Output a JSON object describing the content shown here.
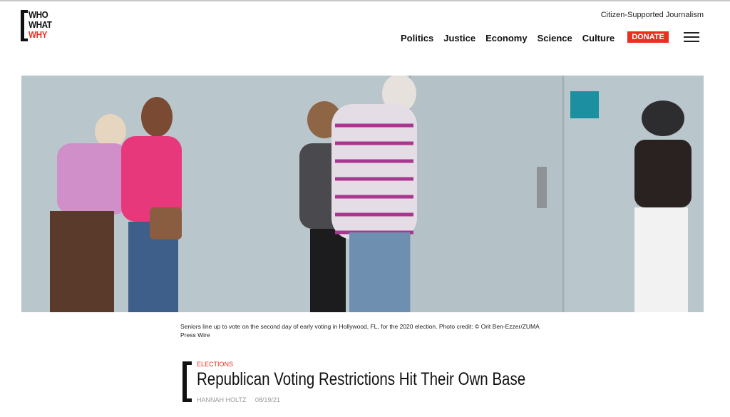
{
  "header": {
    "logo": [
      "WHO",
      "WHAT",
      "WHY"
    ],
    "tagline": "Citizen-Supported Journalism",
    "nav": [
      "Politics",
      "Justice",
      "Economy",
      "Science",
      "Culture"
    ],
    "donate": "DONATE",
    "menu_icon": "hamburger-icon"
  },
  "colors": {
    "accent": "#e8301f"
  },
  "hero": {
    "caption": "Seniors line up to vote on the second day of early voting in Hollywood, FL, for the 2020 election. Photo credit: © Orit Ben-Ezzer/ZUMA Press Wire"
  },
  "article": {
    "category": "ELECTIONS",
    "title": "Republican Voting Restrictions Hit Their Own Base",
    "author": "HANNAH HOLTZ",
    "date": "08/19/21"
  }
}
